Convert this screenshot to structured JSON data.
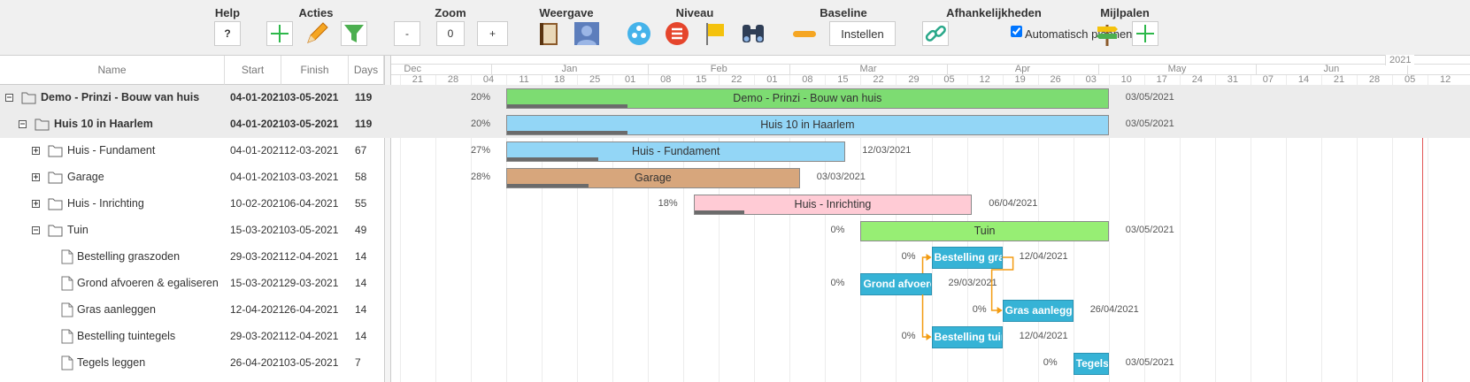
{
  "toolbar": {
    "help": {
      "label": "Help",
      "button": "?"
    },
    "acties": {
      "label": "Acties"
    },
    "zoom": {
      "label": "Zoom",
      "buttons": [
        "-",
        "0",
        "+"
      ]
    },
    "weergave": {
      "label": "Weergave"
    },
    "niveau": {
      "label": "Niveau"
    },
    "baseline": {
      "label": "Baseline",
      "button": "Instellen"
    },
    "afhankelijkheden": {
      "label": "Afhankelijkheden",
      "checkbox": "Automatisch plannen",
      "checked": true
    },
    "mijlpalen": {
      "label": "Mijlpalen"
    }
  },
  "grid": {
    "columns": [
      "Name",
      "Start",
      "Finish",
      "Days"
    ]
  },
  "timeline": {
    "year": "2021",
    "months": [
      "Dec",
      "Jan",
      "Feb",
      "Mar",
      "Apr",
      "May",
      "Jun"
    ],
    "weeks": [
      "21",
      "28",
      "04",
      "11",
      "18",
      "25",
      "01",
      "08",
      "15",
      "22",
      "01",
      "08",
      "15",
      "22",
      "29",
      "05",
      "12",
      "19",
      "26",
      "03",
      "10",
      "17",
      "24",
      "31",
      "07",
      "14",
      "21",
      "28",
      "05",
      "12"
    ]
  },
  "rows": [
    {
      "name": "Demo - Prinzi - Bouw van huis",
      "start": "04-01-2021",
      "finish": "03-05-2021",
      "days": 119,
      "percent": "20%",
      "end_date": "03/05/2021",
      "color": "#7ddc72"
    },
    {
      "name": "Huis 10 in Haarlem",
      "start": "04-01-2021",
      "finish": "03-05-2021",
      "days": 119,
      "percent": "20%",
      "end_date": "03/05/2021",
      "color": "#93d6f6"
    },
    {
      "name": "Huis - Fundament",
      "start": "04-01-2021",
      "finish": "12-03-2021",
      "days": 67,
      "percent": "27%",
      "end_date": "12/03/2021",
      "color": "#93d6f6"
    },
    {
      "name": "Garage",
      "start": "04-01-2021",
      "finish": "03-03-2021",
      "days": 58,
      "percent": "28%",
      "end_date": "03/03/2021",
      "color": "#d7a67c"
    },
    {
      "name": "Huis - Inrichting",
      "start": "10-02-2021",
      "finish": "06-04-2021",
      "days": 55,
      "percent": "18%",
      "end_date": "06/04/2021",
      "color": "#ffcbd5"
    },
    {
      "name": "Tuin",
      "start": "15-03-2021",
      "finish": "03-05-2021",
      "days": 49,
      "percent": "0%",
      "end_date": "03/05/2021",
      "color": "#97ee74"
    },
    {
      "name": "Bestelling graszoden",
      "start": "29-03-2021",
      "finish": "12-04-2021",
      "days": 14,
      "percent": "0%",
      "end_date": "12/04/2021",
      "color": "#36b3d6"
    },
    {
      "name": "Grond afvoeren & egaliseren",
      "start": "15-03-2021",
      "finish": "29-03-2021",
      "days": 14,
      "percent": "0%",
      "end_date": "29/03/2021",
      "color": "#36b3d6"
    },
    {
      "name": "Gras aanleggen",
      "start": "12-04-2021",
      "finish": "26-04-2021",
      "days": 14,
      "percent": "0%",
      "end_date": "26/04/2021",
      "color": "#36b3d6"
    },
    {
      "name": "Bestelling tuintegels",
      "start": "29-03-2021",
      "finish": "12-04-2021",
      "days": 14,
      "percent": "0%",
      "end_date": "12/04/2021",
      "color": "#36b3d6"
    },
    {
      "name": "Tegels leggen",
      "start": "26-04-2021",
      "finish": "03-05-2021",
      "days": 7,
      "percent": "0%",
      "end_date": "03/05/2021",
      "color": "#36b3d6"
    }
  ]
}
